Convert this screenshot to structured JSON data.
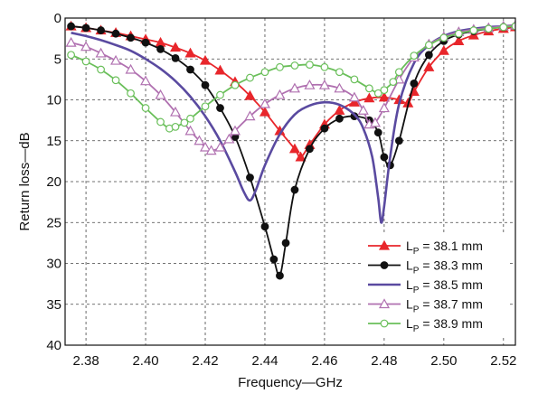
{
  "chart_data": {
    "type": "line",
    "xlabel": "Frequency—GHz",
    "ylabel": "Return loss—dB",
    "xlim": [
      2.373,
      2.524
    ],
    "ylim": [
      0,
      40
    ],
    "y_inverted": true,
    "x_ticks": [
      "2.38",
      "2.40",
      "2.42",
      "2.44",
      "2.46",
      "2.48",
      "2.50",
      "2.52"
    ],
    "x_tick_values": [
      2.38,
      2.4,
      2.42,
      2.44,
      2.46,
      2.48,
      2.5,
      2.52
    ],
    "y_ticks": [
      "0",
      "5",
      "10",
      "15",
      "20",
      "25",
      "30",
      "35",
      "40"
    ],
    "y_tick_values": [
      0,
      5,
      10,
      15,
      20,
      25,
      30,
      35,
      40
    ],
    "grid": "dashed, both axes",
    "legend_position": "bottom-right",
    "series": [
      {
        "legend_prefix": "L",
        "legend_sub": "P",
        "legend_suffix": " = 38.1 mm",
        "color": "#e8262b",
        "marker": "triangle-filled",
        "x": [
          2.375,
          2.38,
          2.385,
          2.39,
          2.395,
          2.4,
          2.405,
          2.41,
          2.415,
          2.42,
          2.425,
          2.43,
          2.435,
          2.44,
          2.445,
          2.45,
          2.452,
          2.455,
          2.46,
          2.465,
          2.47,
          2.475,
          2.48,
          2.485,
          2.488,
          2.49,
          2.495,
          2.5,
          2.505,
          2.51,
          2.515,
          2.52,
          2.524
        ],
        "y": [
          1.0,
          1.2,
          1.5,
          1.8,
          2.2,
          2.6,
          3.0,
          3.6,
          4.3,
          5.2,
          6.4,
          7.8,
          9.5,
          11.5,
          13.8,
          16.0,
          17.0,
          15.5,
          13.0,
          11.3,
          10.3,
          9.8,
          9.7,
          10.0,
          10.4,
          9.0,
          6.0,
          4.0,
          2.8,
          2.1,
          1.6,
          1.3,
          1.1
        ]
      },
      {
        "legend_prefix": "L",
        "legend_sub": "P",
        "legend_suffix": " = 38.3 mm",
        "color": "#111111",
        "marker": "circle-filled",
        "x": [
          2.375,
          2.38,
          2.385,
          2.39,
          2.395,
          2.4,
          2.405,
          2.41,
          2.415,
          2.42,
          2.425,
          2.43,
          2.435,
          2.44,
          2.443,
          2.445,
          2.447,
          2.45,
          2.455,
          2.46,
          2.465,
          2.47,
          2.475,
          2.478,
          2.48,
          2.482,
          2.485,
          2.49,
          2.495,
          2.5,
          2.505,
          2.51,
          2.515,
          2.52,
          2.524
        ],
        "y": [
          1.0,
          1.2,
          1.5,
          1.9,
          2.4,
          3.0,
          3.8,
          4.9,
          6.3,
          8.2,
          11.0,
          14.5,
          19.5,
          25.5,
          29.5,
          31.5,
          27.5,
          21.0,
          16.0,
          13.5,
          12.3,
          12.0,
          12.5,
          14.0,
          17.0,
          18.0,
          15.0,
          8.0,
          4.5,
          2.8,
          2.0,
          1.6,
          1.3,
          1.1,
          1.0
        ]
      },
      {
        "legend_prefix": "L",
        "legend_sub": "P",
        "legend_suffix": " = 38.5 mm",
        "color": "#5a4aa0",
        "marker": "none",
        "x": [
          2.375,
          2.38,
          2.385,
          2.39,
          2.395,
          2.4,
          2.405,
          2.41,
          2.415,
          2.42,
          2.425,
          2.43,
          2.433,
          2.435,
          2.437,
          2.44,
          2.445,
          2.45,
          2.455,
          2.46,
          2.465,
          2.47,
          2.473,
          2.476,
          2.478,
          2.479,
          2.48,
          2.482,
          2.485,
          2.49,
          2.495,
          2.5,
          2.505,
          2.51,
          2.515,
          2.52,
          2.524
        ],
        "y": [
          1.8,
          2.2,
          2.7,
          3.3,
          4.0,
          5.0,
          6.2,
          7.7,
          9.6,
          12.0,
          15.0,
          18.8,
          21.3,
          22.3,
          21.0,
          18.0,
          14.2,
          11.8,
          10.7,
          10.3,
          10.6,
          11.8,
          13.5,
          17.0,
          22.0,
          25.0,
          23.0,
          17.0,
          10.5,
          5.5,
          3.3,
          2.2,
          1.6,
          1.3,
          1.1,
          1.0,
          0.9
        ]
      },
      {
        "legend_prefix": "L",
        "legend_sub": "P",
        "legend_suffix": " = 38.7 mm",
        "color": "#b070b0",
        "marker": "triangle-open",
        "x": [
          2.375,
          2.38,
          2.385,
          2.39,
          2.395,
          2.4,
          2.405,
          2.41,
          2.415,
          2.418,
          2.42,
          2.422,
          2.425,
          2.428,
          2.43,
          2.435,
          2.44,
          2.445,
          2.45,
          2.455,
          2.46,
          2.465,
          2.47,
          2.473,
          2.475,
          2.477,
          2.48,
          2.485,
          2.49,
          2.495,
          2.5,
          2.505,
          2.51,
          2.515,
          2.52,
          2.524
        ],
        "y": [
          3.0,
          3.5,
          4.3,
          5.2,
          6.3,
          7.7,
          9.4,
          11.5,
          13.8,
          15.0,
          15.8,
          16.2,
          15.8,
          14.8,
          13.8,
          12.0,
          10.5,
          9.4,
          8.6,
          8.2,
          8.2,
          8.6,
          9.7,
          11.3,
          13.0,
          12.8,
          11.0,
          7.5,
          4.8,
          3.2,
          2.3,
          1.7,
          1.4,
          1.2,
          1.0,
          0.9
        ]
      },
      {
        "legend_prefix": "L",
        "legend_sub": "P",
        "legend_suffix": " = 38.9 mm",
        "color": "#6abf5a",
        "marker": "circle-open",
        "x": [
          2.375,
          2.38,
          2.385,
          2.39,
          2.395,
          2.4,
          2.405,
          2.408,
          2.41,
          2.413,
          2.415,
          2.42,
          2.425,
          2.43,
          2.435,
          2.44,
          2.445,
          2.45,
          2.455,
          2.46,
          2.465,
          2.47,
          2.475,
          2.478,
          2.48,
          2.483,
          2.485,
          2.49,
          2.495,
          2.5,
          2.505,
          2.51,
          2.515,
          2.52,
          2.524
        ],
        "y": [
          4.5,
          5.3,
          6.3,
          7.6,
          9.2,
          11.0,
          12.7,
          13.5,
          13.3,
          12.8,
          12.3,
          10.8,
          9.4,
          8.2,
          7.3,
          6.6,
          6.0,
          5.8,
          5.7,
          6.0,
          6.6,
          7.5,
          8.6,
          9.2,
          8.8,
          7.8,
          6.6,
          4.6,
          3.3,
          2.4,
          1.9,
          1.5,
          1.3,
          1.1,
          1.0
        ]
      }
    ]
  }
}
